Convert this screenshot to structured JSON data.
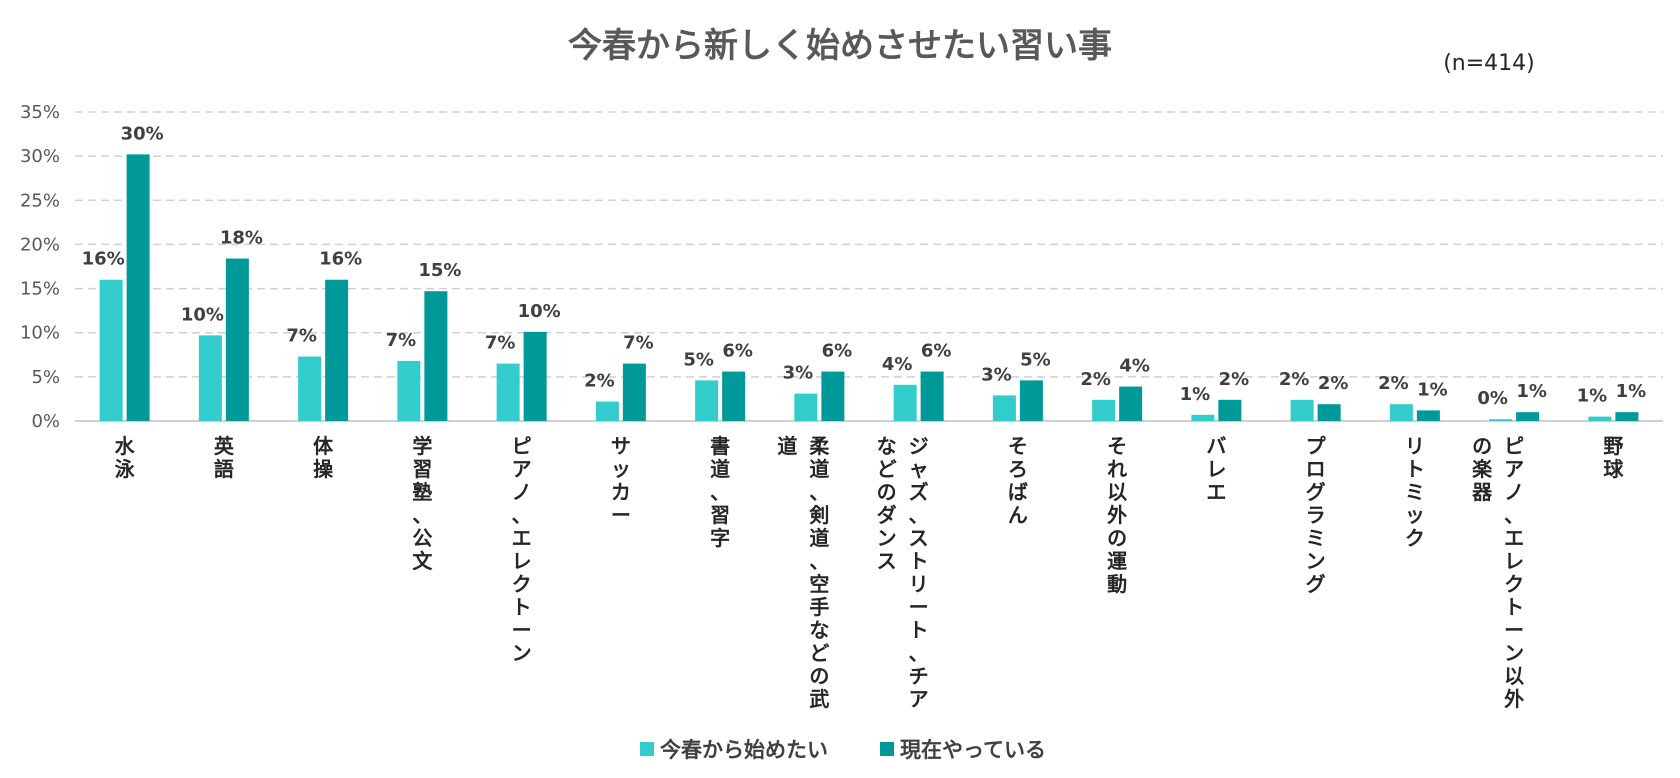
{
  "chart_data": {
    "type": "bar",
    "title": "今春から新しく始めさせたい習い事",
    "note": "(n=414)",
    "ylim": [
      0,
      35
    ],
    "ytick_labels": [
      "0%",
      "5%",
      "10%",
      "15%",
      "20%",
      "25%",
      "30%",
      "35%"
    ],
    "grid": true,
    "legend_position": "bottom",
    "categories": [
      [
        "水泳"
      ],
      [
        "英語"
      ],
      [
        "体操"
      ],
      [
        "学習塾、公文"
      ],
      [
        "ピアノ、エレクトーン"
      ],
      [
        "サッカー"
      ],
      [
        "書道、習字"
      ],
      [
        "柔道、剣道、空手などの武",
        "道"
      ],
      [
        "ジャズ、ストリート、チア",
        "などのダンス"
      ],
      [
        "そろばん"
      ],
      [
        "それ以外の運動"
      ],
      [
        "バレエ"
      ],
      [
        "プログラミング"
      ],
      [
        "リトミック"
      ],
      [
        "ピアノ、エレクトーン以外",
        "の楽器"
      ],
      [
        "野球"
      ]
    ],
    "series": [
      {
        "name": "今春から始めたい",
        "color": "#33CCCC",
        "values": [
          16,
          9.7,
          7.3,
          6.8,
          6.5,
          2.2,
          4.6,
          3.1,
          4.1,
          2.9,
          2.4,
          0.7,
          2.4,
          1.9,
          0.2,
          0.5
        ],
        "labels": [
          "16%",
          "10%",
          "7%",
          "7%",
          "7%",
          "2%",
          "5%",
          "3%",
          "4%",
          "3%",
          "2%",
          "1%",
          "2%",
          "2%",
          "0%",
          "1%"
        ]
      },
      {
        "name": "現在やっている",
        "color": "#009999",
        "values": [
          30.2,
          18.4,
          16.0,
          14.7,
          10.1,
          6.5,
          5.6,
          5.6,
          5.6,
          4.6,
          3.9,
          2.4,
          1.9,
          1.2,
          1.0,
          1.0
        ],
        "labels": [
          "30%",
          "18%",
          "16%",
          "15%",
          "10%",
          "7%",
          "6%",
          "6%",
          "6%",
          "5%",
          "4%",
          "2%",
          "2%",
          "1%",
          "1%",
          "1%"
        ]
      }
    ]
  }
}
